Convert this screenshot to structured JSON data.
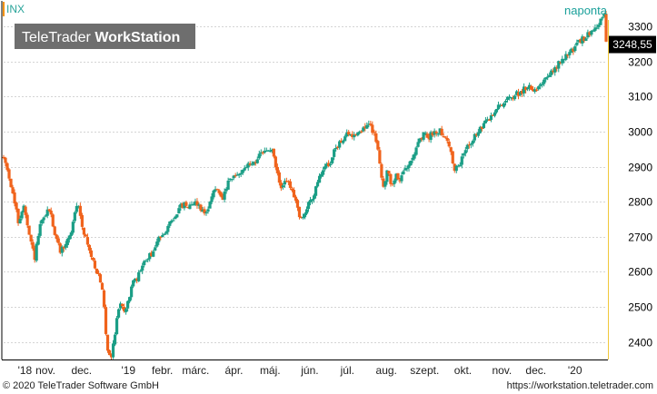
{
  "chart_data": {
    "type": "candlestick",
    "symbol": "INX",
    "brand": {
      "name_light": "TeleTrader ",
      "name_bold": "WorkStation"
    },
    "interval_label": "naponta",
    "last_price_label": "3248,55",
    "y_ticks": [
      2400,
      2500,
      2600,
      2700,
      2800,
      2900,
      3000,
      3100,
      3200,
      3300
    ],
    "ylim": [
      2350,
      3360
    ],
    "x_ticks": [
      {
        "t": 2.0,
        "label": "'18"
      },
      {
        "t": 5.9,
        "label": "nov."
      },
      {
        "t": 11.0,
        "label": "dec."
      },
      {
        "t": 17.6,
        "label": "'19"
      },
      {
        "t": 22.4,
        "label": "febr."
      },
      {
        "t": 27.1,
        "label": "márc."
      },
      {
        "t": 32.5,
        "label": "ápr."
      },
      {
        "t": 37.6,
        "label": "máj."
      },
      {
        "t": 43.2,
        "label": "jún."
      },
      {
        "t": 48.5,
        "label": "júl."
      },
      {
        "t": 54.0,
        "label": "aug."
      },
      {
        "t": 59.4,
        "label": "szept."
      },
      {
        "t": 64.8,
        "label": "okt."
      },
      {
        "t": 70.3,
        "label": "nov."
      },
      {
        "t": 75.1,
        "label": "dec."
      },
      {
        "t": 80.6,
        "label": "'20"
      }
    ],
    "t_range": [
      0,
      85
    ],
    "path": [
      [
        0,
        2925
      ],
      [
        0.7,
        2880
      ],
      [
        1.5,
        2800
      ],
      [
        2.1,
        2740
      ],
      [
        2.8,
        2790
      ],
      [
        3.6,
        2700
      ],
      [
        4.4,
        2640
      ],
      [
        5.0,
        2720
      ],
      [
        5.8,
        2760
      ],
      [
        6.5,
        2780
      ],
      [
        7.3,
        2700
      ],
      [
        8.0,
        2660
      ],
      [
        8.8,
        2680
      ],
      [
        9.6,
        2720
      ],
      [
        10.4,
        2800
      ],
      [
        11.0,
        2740
      ],
      [
        11.8,
        2680
      ],
      [
        12.4,
        2640
      ],
      [
        13.2,
        2600
      ],
      [
        14.0,
        2540
      ],
      [
        14.6,
        2380
      ],
      [
        15.2,
        2360
      ],
      [
        15.8,
        2440
      ],
      [
        16.4,
        2520
      ],
      [
        17.2,
        2480
      ],
      [
        18.0,
        2560
      ],
      [
        18.8,
        2580
      ],
      [
        19.6,
        2620
      ],
      [
        20.4,
        2640
      ],
      [
        21.2,
        2660
      ],
      [
        22.0,
        2700
      ],
      [
        22.8,
        2720
      ],
      [
        23.6,
        2740
      ],
      [
        24.4,
        2770
      ],
      [
        25.2,
        2790
      ],
      [
        26.0,
        2790
      ],
      [
        26.8,
        2800
      ],
      [
        27.6,
        2790
      ],
      [
        28.4,
        2760
      ],
      [
        29.2,
        2810
      ],
      [
        30.0,
        2840
      ],
      [
        30.8,
        2800
      ],
      [
        31.6,
        2850
      ],
      [
        32.4,
        2870
      ],
      [
        33.2,
        2880
      ],
      [
        34.0,
        2900
      ],
      [
        34.8,
        2905
      ],
      [
        35.6,
        2920
      ],
      [
        36.4,
        2935
      ],
      [
        37.2,
        2950
      ],
      [
        38.0,
        2940
      ],
      [
        38.6,
        2880
      ],
      [
        39.2,
        2830
      ],
      [
        39.8,
        2870
      ],
      [
        40.4,
        2840
      ],
      [
        41.2,
        2800
      ],
      [
        41.8,
        2760
      ],
      [
        42.4,
        2750
      ],
      [
        43.0,
        2800
      ],
      [
        43.8,
        2820
      ],
      [
        44.6,
        2870
      ],
      [
        45.2,
        2900
      ],
      [
        46.0,
        2910
      ],
      [
        46.8,
        2950
      ],
      [
        47.6,
        2975
      ],
      [
        48.4,
        2990
      ],
      [
        49.2,
        2990
      ],
      [
        50.0,
        3000
      ],
      [
        50.8,
        3010
      ],
      [
        51.6,
        3020
      ],
      [
        52.4,
        2990
      ],
      [
        53.0,
        2920
      ],
      [
        53.6,
        2840
      ],
      [
        54.2,
        2890
      ],
      [
        54.8,
        2840
      ],
      [
        55.4,
        2880
      ],
      [
        56.0,
        2860
      ],
      [
        56.8,
        2900
      ],
      [
        57.6,
        2930
      ],
      [
        58.4,
        2960
      ],
      [
        59.2,
        2990
      ],
      [
        60.0,
        2985
      ],
      [
        60.8,
        3000
      ],
      [
        61.6,
        3005
      ],
      [
        62.4,
        2980
      ],
      [
        63.0,
        2950
      ],
      [
        63.6,
        2890
      ],
      [
        64.2,
        2900
      ],
      [
        64.8,
        2930
      ],
      [
        65.4,
        2960
      ],
      [
        66.2,
        2980
      ],
      [
        67.0,
        3000
      ],
      [
        67.8,
        3020
      ],
      [
        68.6,
        3040
      ],
      [
        69.4,
        3060
      ],
      [
        70.2,
        3080
      ],
      [
        71.0,
        3090
      ],
      [
        71.8,
        3100
      ],
      [
        72.6,
        3110
      ],
      [
        73.4,
        3120
      ],
      [
        74.2,
        3130
      ],
      [
        75.0,
        3120
      ],
      [
        75.8,
        3140
      ],
      [
        76.6,
        3150
      ],
      [
        77.4,
        3170
      ],
      [
        78.2,
        3190
      ],
      [
        79.0,
        3210
      ],
      [
        79.8,
        3225
      ],
      [
        80.6,
        3240
      ],
      [
        81.4,
        3260
      ],
      [
        82.2,
        3270
      ],
      [
        83.0,
        3290
      ],
      [
        83.6,
        3300
      ],
      [
        84.2,
        3320
      ],
      [
        84.8,
        3330
      ],
      [
        85.0,
        3248.55
      ]
    ],
    "colors": {
      "up": "#1b9e86",
      "down": "#f0631c",
      "grid": "#d4d4d4",
      "axis": "#000000",
      "symbol_text": "#2aa49a",
      "interval_text": "#1aa09a",
      "price_box_bg": "#000000",
      "price_box_text": "#ffffff",
      "symbol_marker": "#f29000",
      "right_axis_line": "#f0c73a",
      "brand_box_bg": "#6e6e6e",
      "brand_box_text": "#ffffff"
    }
  },
  "footer": {
    "copyright": "© 2020 TeleTrader Software GmbH",
    "url": "https://workstation.teletrader.com"
  }
}
